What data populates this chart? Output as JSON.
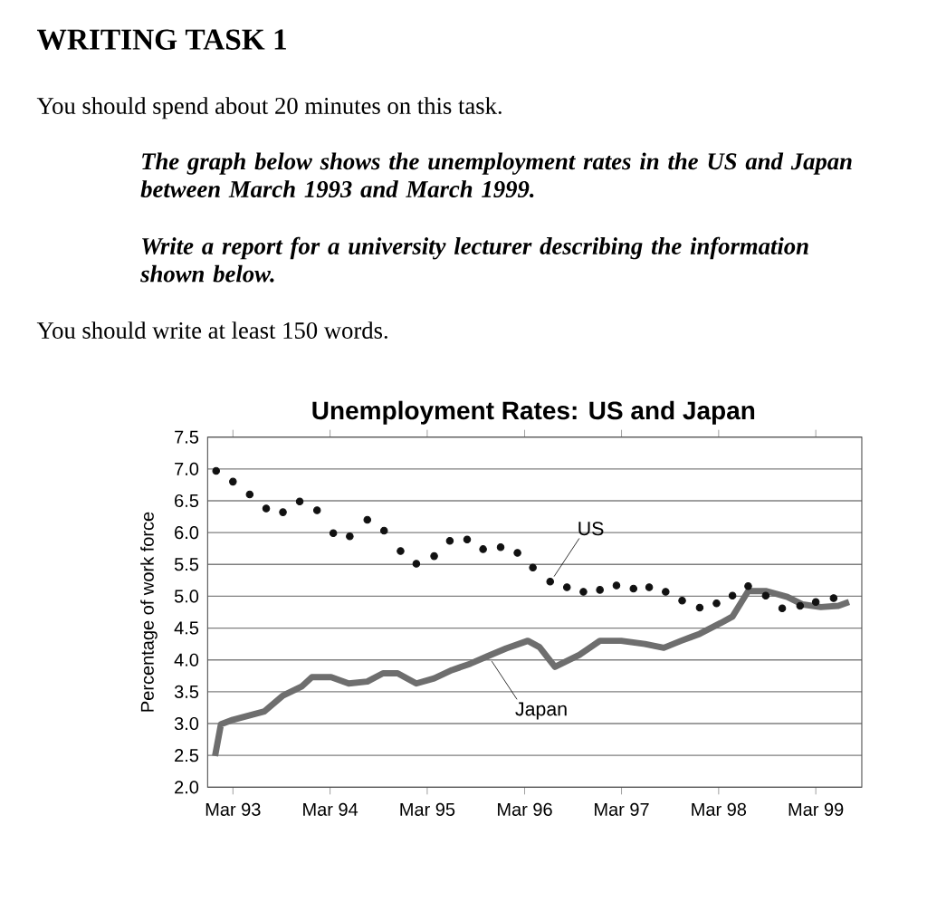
{
  "chart_data": {
    "type": "line",
    "title": "Unemployment Rates: US and Japan",
    "ylabel": "Percentage of work force",
    "annotations": [
      "WRITING TASK 1",
      "You should spend about 20 minutes on this task.",
      "The graph below shows the unemployment rates in the US and Japan between March 1993 and March 1999.",
      "Write a report for a university lecturer describing the information shown below.",
      "You should write at least 150 words."
    ],
    "xlim": [
      "1992-11-25",
      "1999-08-21"
    ],
    "ylim": [
      2.0,
      7.5
    ],
    "xticks": [
      {
        "value": "1993-03-01",
        "label": "Mar 93"
      },
      {
        "value": "1994-03-01",
        "label": "Mar 94"
      },
      {
        "value": "1995-03-01",
        "label": "Mar 95"
      },
      {
        "value": "1996-03-01",
        "label": "Mar 96"
      },
      {
        "value": "1997-03-01",
        "label": "Mar 97"
      },
      {
        "value": "1998-03-01",
        "label": "Mar 98"
      },
      {
        "value": "1999-03-01",
        "label": "Mar 99"
      }
    ],
    "yticks": [
      {
        "value": 2.0,
        "label": "2.0"
      },
      {
        "value": 2.5,
        "label": "2.5"
      },
      {
        "value": 3.0,
        "label": "3.0"
      },
      {
        "value": 3.5,
        "label": "3.5"
      },
      {
        "value": 4.0,
        "label": "4.0"
      },
      {
        "value": 4.5,
        "label": "4.5"
      },
      {
        "value": 5.0,
        "label": "5.0"
      },
      {
        "value": 5.5,
        "label": "5.5"
      },
      {
        "value": 6.0,
        "label": "6.0"
      },
      {
        "value": 6.5,
        "label": "6.5"
      },
      {
        "value": 7.0,
        "label": "7.0"
      },
      {
        "value": 7.5,
        "label": "7.5"
      }
    ],
    "grid": "y",
    "legend": false,
    "series": [
      {
        "name": "US",
        "type": "scatter",
        "marker": "circle",
        "color": "#111111",
        "x": [
          "1992-12-27",
          "1993-03-01",
          "1993-05-03",
          "1993-07-04",
          "1993-09-05",
          "1993-11-07",
          "1994-01-11",
          "1994-03-13",
          "1994-05-14",
          "1994-07-19",
          "1994-09-20",
          "1994-11-21",
          "1995-01-19",
          "1995-03-27",
          "1995-05-25",
          "1995-07-29",
          "1995-09-27",
          "1995-12-02",
          "1996-02-03",
          "1996-04-01",
          "1996-06-05",
          "1996-08-07",
          "1996-10-08",
          "1996-12-09",
          "1997-02-10",
          "1997-04-15",
          "1997-06-13",
          "1997-08-14",
          "1997-10-15",
          "1997-12-20",
          "1998-02-21",
          "1998-04-22",
          "1998-06-20",
          "1998-08-25",
          "1998-10-26",
          "1999-01-01",
          "1999-03-01",
          "1999-05-07"
        ],
        "values": [
          6.97,
          6.8,
          6.6,
          6.38,
          6.32,
          6.49,
          6.35,
          5.99,
          5.94,
          6.2,
          6.03,
          5.71,
          5.51,
          5.63,
          5.87,
          5.89,
          5.74,
          5.77,
          5.68,
          5.45,
          5.23,
          5.14,
          5.07,
          5.1,
          5.17,
          5.12,
          5.14,
          5.07,
          4.93,
          4.82,
          4.89,
          5.01,
          5.16,
          5.01,
          4.81,
          4.85,
          4.91,
          4.97
        ]
      },
      {
        "name": "Japan",
        "type": "line",
        "marker": "none",
        "color": "#6e6e6e",
        "x": [
          "1992-12-23",
          "1993-01-15",
          "1993-03-01",
          "1993-06-27",
          "1993-09-05",
          "1993-11-14",
          "1993-12-23",
          "1994-03-05",
          "1994-05-10",
          "1994-07-19",
          "1994-09-16",
          "1994-11-10",
          "1995-01-19",
          "1995-03-27",
          "1995-06-02",
          "1995-08-10",
          "1995-10-15",
          "1995-12-23",
          "1996-03-13",
          "1996-04-26",
          "1996-06-23",
          "1996-09-23",
          "1996-12-09",
          "1997-02-28",
          "1997-05-28",
          "1997-08-07",
          "1997-10-11",
          "1997-12-20",
          "1998-03-09",
          "1998-04-22",
          "1998-06-20",
          "1998-08-28",
          "1998-11-14",
          "1999-01-11",
          "1999-03-20",
          "1999-05-25",
          "1999-07-04"
        ],
        "values": [
          2.49,
          2.99,
          3.06,
          3.19,
          3.44,
          3.58,
          3.73,
          3.73,
          3.63,
          3.66,
          3.79,
          3.79,
          3.63,
          3.71,
          3.84,
          3.94,
          4.06,
          4.18,
          4.3,
          4.2,
          3.89,
          4.08,
          4.3,
          4.3,
          4.25,
          4.19,
          4.3,
          4.41,
          4.58,
          4.68,
          5.08,
          5.08,
          4.99,
          4.87,
          4.83,
          4.85,
          4.91
        ]
      }
    ]
  }
}
